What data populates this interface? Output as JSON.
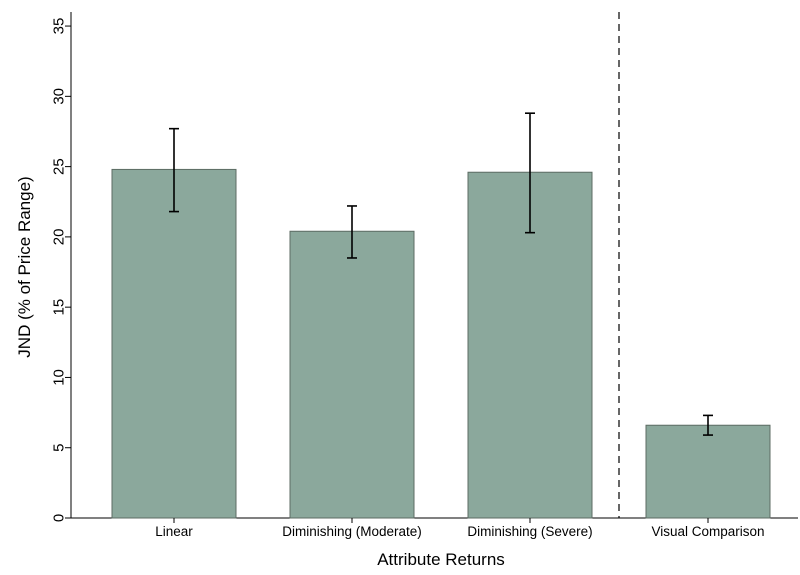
{
  "chart_data": {
    "type": "bar",
    "xlabel": "Attribute Returns",
    "ylabel": "JND (% of Price Range)",
    "ylim": [
      0,
      36
    ],
    "yticks": [
      0,
      5,
      10,
      15,
      20,
      25,
      30,
      35
    ],
    "categories": [
      "Linear",
      "Diminishing (Moderate)",
      "Diminishing (Severe)",
      "Visual Comparison"
    ],
    "values": [
      24.8,
      20.4,
      24.6,
      6.6
    ],
    "error_low": [
      21.8,
      18.5,
      20.3,
      5.9
    ],
    "error_high": [
      27.7,
      22.2,
      28.8,
      7.3
    ],
    "separator_after_category": 3,
    "bar_color": "#8ba89c",
    "bar_edge_color": "#5c6b63",
    "grid": false,
    "legend": "none"
  }
}
